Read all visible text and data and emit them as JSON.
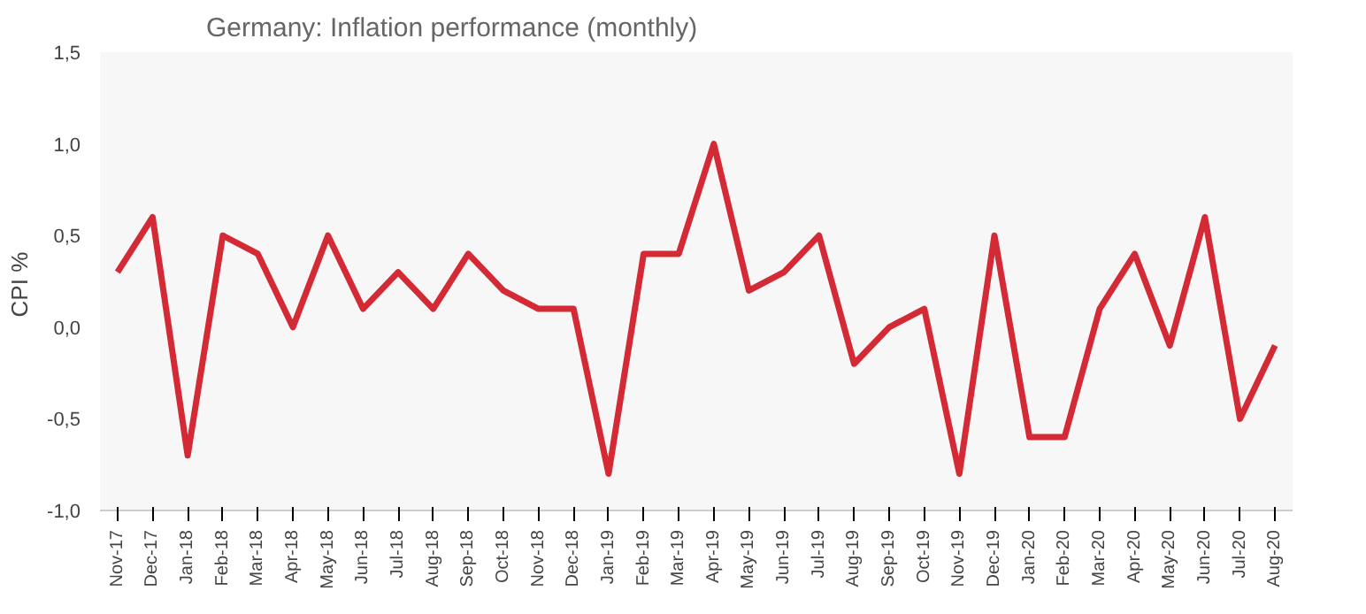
{
  "chart_data": {
    "type": "line",
    "title": "Germany: Inflation performance (monthly)",
    "ylabel": "CPI  %",
    "categories": [
      "Nov-17",
      "Dec-17",
      "Jan-18",
      "Feb-18",
      "Mar-18",
      "Apr-18",
      "May-18",
      "Jun-18",
      "Jul-18",
      "Aug-18",
      "Sep-18",
      "Oct-18",
      "Nov-18",
      "Dec-18",
      "Jan-19",
      "Feb-19",
      "Mar-19",
      "Apr-19",
      "May-19",
      "Jun-19",
      "Jul-19",
      "Aug-19",
      "Sep-19",
      "Oct-19",
      "Nov-19",
      "Dec-19",
      "Jan-20",
      "Feb-20",
      "Mar-20",
      "Apr-20",
      "May-20",
      "Jun-20",
      "Jul-20",
      "Aug-20"
    ],
    "series": [
      {
        "color": "#d42a35",
        "values": [
          0.3,
          0.6,
          -0.7,
          0.5,
          0.4,
          0.0,
          0.5,
          0.1,
          0.3,
          0.1,
          0.4,
          0.2,
          0.1,
          0.1,
          -0.8,
          0.4,
          0.4,
          1.0,
          0.2,
          0.3,
          0.5,
          -0.2,
          0.0,
          0.1,
          -0.8,
          0.5,
          -0.6,
          -0.6,
          0.1,
          0.4,
          -0.1,
          0.6,
          -0.5,
          -0.1
        ]
      }
    ],
    "ylim": [
      -1,
      1.5
    ],
    "yticks": [
      {
        "value": -1,
        "label": "-1,0"
      },
      {
        "value": -0.5,
        "label": "-0,5"
      },
      {
        "value": 0,
        "label": "0,0"
      },
      {
        "value": 0.5,
        "label": "0,5"
      },
      {
        "value": 1,
        "label": "1,0"
      },
      {
        "value": 1.5,
        "label": "1,5"
      }
    ],
    "grid": false,
    "marker": "none",
    "line_style": "solid"
  }
}
